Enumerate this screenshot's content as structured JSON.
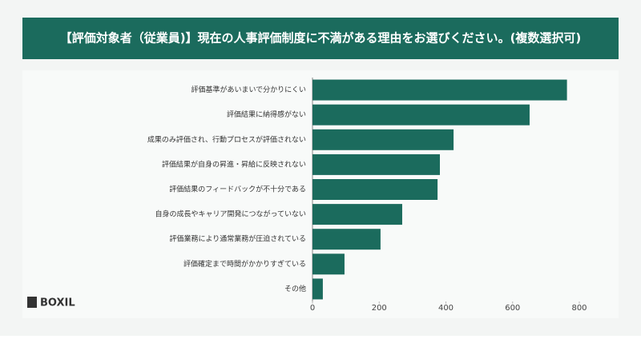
{
  "chart_data": {
    "type": "barh",
    "title": "【評価対象者（従業員)】現在の人事評価制度に不満がある理由をお選びください。(複数選択可)",
    "brand": "BOXIL",
    "categories": [
      "評価基準があいまいで分かりにくい",
      "評価結果に納得感がない",
      "成果のみ評価され、行動プロセスが評価されない",
      "評価結果が自身の昇進・昇給に反映されない",
      "評価結果のフィードバックが不十分である",
      "自身の成長やキャリア開発につながっていない",
      "評価業務により通常業務が圧迫されている",
      "評価確定まで時間がかかりすぎている",
      "その他"
    ],
    "values": [
      763,
      651,
      423,
      382,
      375,
      269,
      204,
      96,
      31
    ],
    "color": "#1b6b5d",
    "xlim": [
      0,
      800
    ],
    "xticks": [
      0,
      200,
      400,
      600,
      800
    ]
  }
}
